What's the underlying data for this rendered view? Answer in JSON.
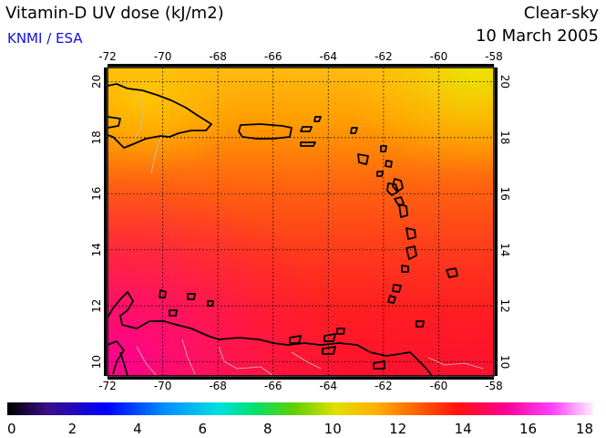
{
  "header": {
    "title": "Vitamin-D UV dose (kJ/m2)",
    "credit": "KNMI / ESA",
    "condition": "Clear-sky",
    "date": "10 March 2005"
  },
  "map": {
    "lon_range": [
      -72,
      -58
    ],
    "lat_range": [
      9.5,
      20.5
    ],
    "lon_ticks": [
      "-72",
      "-70",
      "-68",
      "-66",
      "-64",
      "-62",
      "-60",
      "-58"
    ],
    "lat_ticks": [
      "10",
      "12",
      "14",
      "16",
      "18",
      "20"
    ],
    "grid": true
  },
  "colorbar": {
    "range": [
      0,
      18
    ],
    "ticks": [
      "0",
      "2",
      "4",
      "6",
      "8",
      "10",
      "12",
      "14",
      "16",
      "18"
    ],
    "colors": [
      "#000000",
      "#3b0f8a",
      "#0000ff",
      "#0090ff",
      "#00e0e0",
      "#00e070",
      "#60d000",
      "#e0e000",
      "#ffb000",
      "#ff6000",
      "#ff1010",
      "#ff0090",
      "#ff40ff",
      "#fff0ff"
    ]
  }
}
